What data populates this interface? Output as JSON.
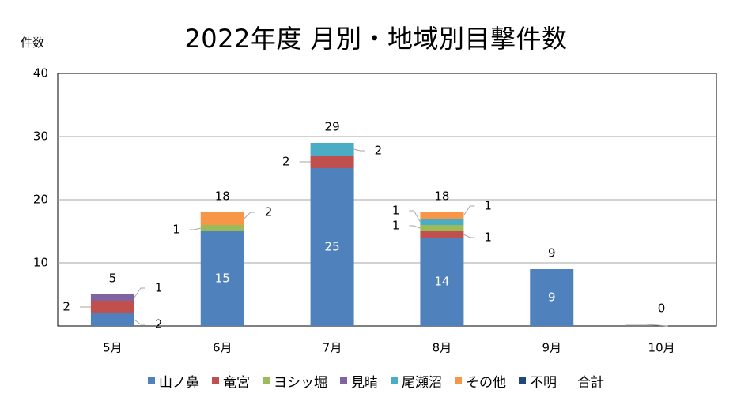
{
  "chart_data": {
    "type": "bar",
    "title": "2022年度 月別・地域別目撃件数",
    "ylabel": "件数",
    "ylim": [
      0,
      40
    ],
    "yticks": [
      10,
      20,
      30,
      40
    ],
    "grid": true,
    "legend_position": "bottom",
    "categories": [
      "5月",
      "6月",
      "7月",
      "8月",
      "9月",
      "10月"
    ],
    "series": [
      {
        "name": "山ノ鼻",
        "color": "#4f81bd",
        "values": [
          2,
          15,
          25,
          14,
          9,
          0
        ]
      },
      {
        "name": "竜宮",
        "color": "#c0504d",
        "values": [
          2,
          0,
          2,
          1,
          0,
          0
        ]
      },
      {
        "name": "ヨシッ堀",
        "color": "#9bbb59",
        "values": [
          0,
          1,
          0,
          1,
          0,
          0
        ]
      },
      {
        "name": "見晴",
        "color": "#8064a2",
        "values": [
          1,
          0,
          0,
          0,
          0,
          0
        ]
      },
      {
        "name": "尾瀬沼",
        "color": "#4bacc6",
        "values": [
          0,
          0,
          2,
          1,
          0,
          0
        ]
      },
      {
        "name": "その他",
        "color": "#f79646",
        "values": [
          0,
          2,
          0,
          1,
          0,
          0
        ]
      },
      {
        "name": "不明",
        "color": "#1f497d",
        "values": [
          0,
          0,
          0,
          0,
          0,
          0
        ]
      }
    ],
    "totals": {
      "name": "合計",
      "values": [
        5,
        18,
        29,
        18,
        9,
        0
      ]
    }
  }
}
